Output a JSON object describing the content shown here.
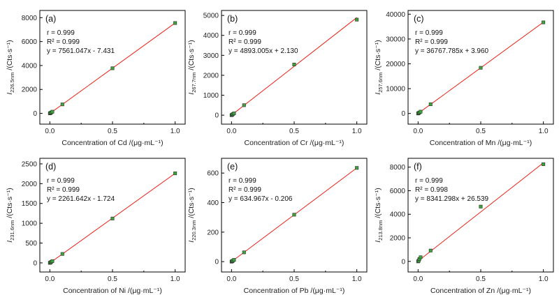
{
  "chart_data": [
    {
      "type": "scatter",
      "panel": "(a)",
      "xlabel": "Concentration of Cd /(μg·mL⁻¹)",
      "ylabel": {
        "main": "I",
        "sub": "226.5nm",
        "unit": " /(Cts·s⁻¹)"
      },
      "x_ticks": [
        "0.0",
        "0.5",
        "1.0"
      ],
      "y_ticks": [
        "0",
        "2000",
        "4000",
        "6000",
        "8000"
      ],
      "xlim": [
        -0.08,
        1.08
      ],
      "ylim": [
        -900,
        8600
      ],
      "y_tick_values": [
        0,
        2000,
        4000,
        6000,
        8000
      ],
      "r_text": "r = 0.999",
      "r2_text": "R² = 0.999",
      "eq_text": "y = 7561.047x - 7.431",
      "slope": 7561.047,
      "intercept": -7.431,
      "x": [
        0,
        0.005,
        0.01,
        0.02,
        0.1,
        0.5,
        1.0
      ],
      "y": [
        0,
        30,
        70,
        140,
        750,
        3770,
        7550
      ]
    },
    {
      "type": "scatter",
      "panel": "(b)",
      "xlabel": "Concentration of Cr /(μg·mL⁻¹)",
      "ylabel": {
        "main": "I",
        "sub": "267.7nm",
        "unit": " /(Cts·s⁻¹)"
      },
      "x_ticks": [
        "0.0",
        "0.5",
        "1.0"
      ],
      "y_ticks": [
        "0",
        "1000",
        "2000",
        "3000",
        "4000",
        "5000"
      ],
      "xlim": [
        -0.08,
        1.08
      ],
      "ylim": [
        -450,
        5250
      ],
      "y_tick_values": [
        0,
        1000,
        2000,
        3000,
        4000,
        5000
      ],
      "r_text": "r = 0.999",
      "r2_text": "R² = 0.999",
      "eq_text": "y = 4893.005x + 2.130",
      "slope": 4893.005,
      "intercept": 2.13,
      "x": [
        0,
        0.005,
        0.01,
        0.02,
        0.1,
        0.5,
        1.0
      ],
      "y": [
        0,
        20,
        50,
        90,
        500,
        2540,
        4790
      ]
    },
    {
      "type": "scatter",
      "panel": "(c)",
      "xlabel": "Concentration of Mn /(μg·mL⁻¹)",
      "ylabel": {
        "main": "I",
        "sub": "257.6nm",
        "unit": " /(Cts·s⁻¹)"
      },
      "x_ticks": [
        "0.0",
        "0.5",
        "1.0"
      ],
      "y_ticks": [
        "0",
        "10000",
        "20000",
        "30000",
        "40000"
      ],
      "xlim": [
        -0.08,
        1.08
      ],
      "ylim": [
        -4300,
        41500
      ],
      "y_tick_values": [
        0,
        10000,
        20000,
        30000,
        40000
      ],
      "r_text": "r = 0.999",
      "r2_text": "R² = 0.999",
      "eq_text": "y = 36767.785x + 3.960",
      "slope": 36767.785,
      "intercept": 3.96,
      "x": [
        0,
        0.005,
        0.01,
        0.02,
        0.1,
        0.5,
        1.0
      ],
      "y": [
        0,
        180,
        370,
        730,
        3700,
        18400,
        36700
      ]
    },
    {
      "type": "scatter",
      "panel": "(d)",
      "xlabel": "Concentration of Ni /(μg·mL⁻¹)",
      "ylabel": {
        "main": "I",
        "sub": "231.6nm",
        "unit": " /(Cts·s⁻¹)"
      },
      "x_ticks": [
        "0.0",
        "0.5",
        "1.0"
      ],
      "y_ticks": [
        "0",
        "500",
        "1000",
        "1500",
        "2000",
        "2500"
      ],
      "xlim": [
        -0.08,
        1.08
      ],
      "ylim": [
        -230,
        2640
      ],
      "y_tick_values": [
        0,
        500,
        1000,
        1500,
        2000,
        2500
      ],
      "r_text": "r = 0.999",
      "r2_text": "R² = 0.999",
      "eq_text": "y = 2261.642x - 1.724",
      "slope": 2261.642,
      "intercept": -1.724,
      "x": [
        0,
        0.005,
        0.01,
        0.02,
        0.1,
        0.5,
        1.0
      ],
      "y": [
        0,
        10,
        22,
        45,
        225,
        1120,
        2260
      ]
    },
    {
      "type": "scatter",
      "panel": "(e)",
      "xlabel": "Concentration of Pb /(μg·mL⁻¹)",
      "ylabel": {
        "main": "I",
        "sub": "220.3nm",
        "unit": " /(Cts·s⁻¹)"
      },
      "x_ticks": [
        "0.0",
        "0.5",
        "1.0"
      ],
      "y_ticks": [
        "0",
        "200",
        "400",
        "600"
      ],
      "xlim": [
        -0.08,
        1.08
      ],
      "ylim": [
        -70,
        700
      ],
      "y_tick_values": [
        0,
        200,
        400,
        600
      ],
      "r_text": "r = 0.999",
      "r2_text": "R² = 0.999",
      "eq_text": "y = 634.967x - 0.206",
      "slope": 634.967,
      "intercept": -0.206,
      "x": [
        0,
        0.005,
        0.01,
        0.02,
        0.1,
        0.5,
        1.0
      ],
      "y": [
        0,
        3,
        6,
        12,
        63,
        318,
        635
      ]
    },
    {
      "type": "scatter",
      "panel": "(f)",
      "xlabel": "Concentration of Zn /(μg·mL⁻¹)",
      "ylabel": {
        "main": "I",
        "sub": "213.8nm",
        "unit": " /(Cts·s⁻¹)"
      },
      "x_ticks": [
        "0.0",
        "0.5",
        "1.0"
      ],
      "y_ticks": [
        "0",
        "2000",
        "4000",
        "6000",
        "8000"
      ],
      "xlim": [
        -0.08,
        1.08
      ],
      "ylim": [
        -900,
        8750
      ],
      "y_tick_values": [
        0,
        2000,
        4000,
        6000,
        8000
      ],
      "r_text": "r = 0.999",
      "r2_text": "R² = 0.998",
      "eq_text": "y = 8341.298x + 26.539",
      "slope": 8341.298,
      "intercept": 26.539,
      "x": [
        0,
        0.005,
        0.01,
        0.02,
        0.1,
        0.5,
        1.0
      ],
      "y": [
        0,
        60,
        200,
        350,
        920,
        4650,
        8250
      ]
    }
  ]
}
